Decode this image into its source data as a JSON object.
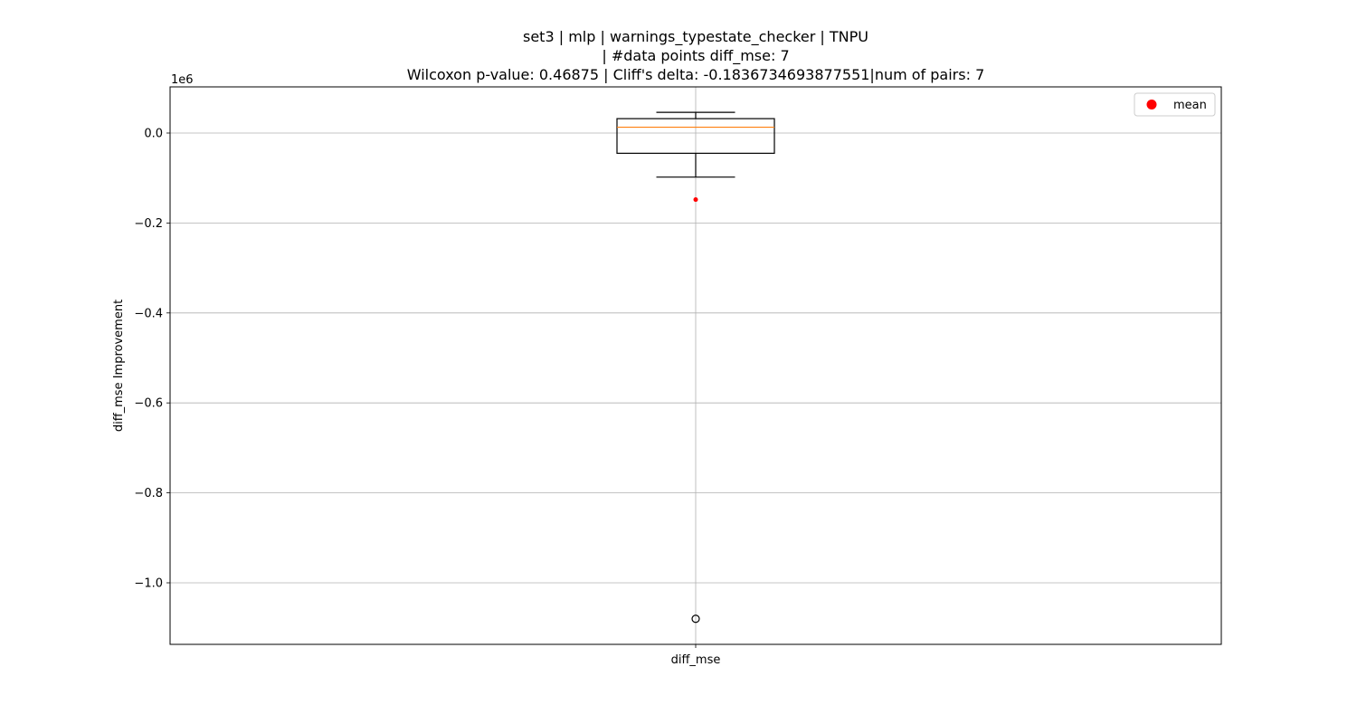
{
  "chart_data": {
    "type": "box",
    "title_lines": [
      "set3 | mlp | warnings_typestate_checker | TNPU",
      "| #data points diff_mse: 7",
      "Wilcoxon p-value: 0.46875 | Cliff's delta: -0.1836734693877551|num of pairs: 7"
    ],
    "ylabel": "diff_mse Improvement",
    "y_offset_label": "1e6",
    "categories": [
      "diff_mse"
    ],
    "ylim": [
      -1.135,
      0.1
    ],
    "y_ticks": [
      0.0,
      -0.2,
      -0.4,
      -0.6,
      -0.8,
      -1.0
    ],
    "y_tick_labels": [
      "0.0",
      "−0.2",
      "−0.4",
      "−0.6",
      "−0.8",
      "−1.0"
    ],
    "grid": true,
    "box": {
      "q1": -0.045,
      "median": 0.013,
      "q3": 0.032,
      "whisker_low": -0.098,
      "whisker_high": 0.046,
      "outliers": [
        -1.08
      ],
      "mean": -0.148
    },
    "legend": {
      "position": "top-right",
      "entries": [
        {
          "label": "mean",
          "color": "#ff0000"
        }
      ]
    },
    "colors": {
      "median": "#ff7f0e",
      "mean": "#ff0000",
      "box": "#000000",
      "grid": "#b0b0b0"
    }
  }
}
